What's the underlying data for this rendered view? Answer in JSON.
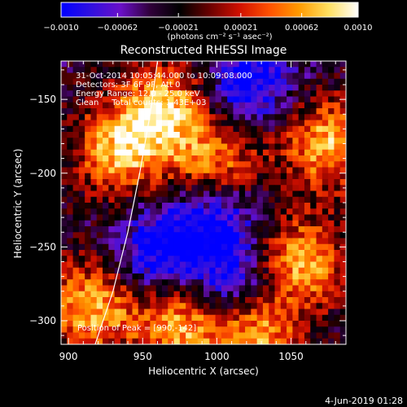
{
  "chart_data": {
    "type": "heatmap",
    "title": "Reconstructed RHESSI Image",
    "xlabel": "Heliocentric X (arcsec)",
    "ylabel": "Heliocentric Y (arcsec)",
    "xlim": [
      895,
      1087
    ],
    "ylim": [
      -316,
      -124
    ],
    "x_ticks": [
      900,
      950,
      1000,
      1050
    ],
    "y_ticks": [
      -300,
      -250,
      -200,
      -150
    ],
    "x_tick_labels": [
      "900",
      "950",
      "1000",
      "1050"
    ],
    "y_tick_labels": [
      "−300",
      "−250",
      "−200",
      "−150"
    ],
    "grid": false,
    "colorbar": {
      "range": [
        -0.001,
        0.001
      ],
      "ticks": [
        -0.001,
        -0.00062,
        -0.00021,
        0.00021,
        0.00062,
        0.001
      ],
      "tick_labels": [
        "−0.0010",
        "−0.00062",
        "−0.00021",
        "0.00021",
        "0.00062",
        "0.0010"
      ],
      "unit_label": "(photons cm⁻² s⁻¹ asec⁻²)",
      "colors": [
        "#0000ff",
        "#3010e0",
        "#6a10c8",
        "#30003a",
        "#000000",
        "#6a0000",
        "#d01000",
        "#ff5000",
        "#ff9a00",
        "#ffe060",
        "#ffffff"
      ]
    },
    "annotations": [
      "31-Oct-2014 10:05:44.000 to 10:09:08.000",
      "Detectors: 3F 6F 9F, Att 0",
      "Energy Range: 12.0 - 25.0 keV",
      "Clean     Total counts: 1.43E+03"
    ],
    "peak_label": "Position of Peak = [990,-142]",
    "limb": [
      [
        960,
        -124
      ],
      [
        955,
        -160
      ],
      [
        948,
        -200
      ],
      [
        940,
        -240
      ],
      [
        930,
        -280
      ],
      [
        918,
        -316
      ]
    ],
    "image_grid": {
      "nx": 48,
      "ny": 48,
      "levels": [
        {
          "value": 0.001,
          "centers": [
            [
              965,
              -155
            ],
            [
              935,
              -185
            ],
            [
              915,
              -290
            ],
            [
              1075,
              -180
            ],
            [
              1055,
              -260
            ],
            [
              1025,
              -310
            ],
            [
              975,
              -300
            ],
            [
              1000,
              -195
            ]
          ]
        },
        {
          "value": -0.0008,
          "centers": [
            [
              1020,
              -140
            ],
            [
              1000,
              -225
            ],
            [
              1010,
              -275
            ],
            [
              960,
              -255
            ]
          ]
        }
      ]
    },
    "footer_date": "4-Jun-2019 01:28"
  }
}
